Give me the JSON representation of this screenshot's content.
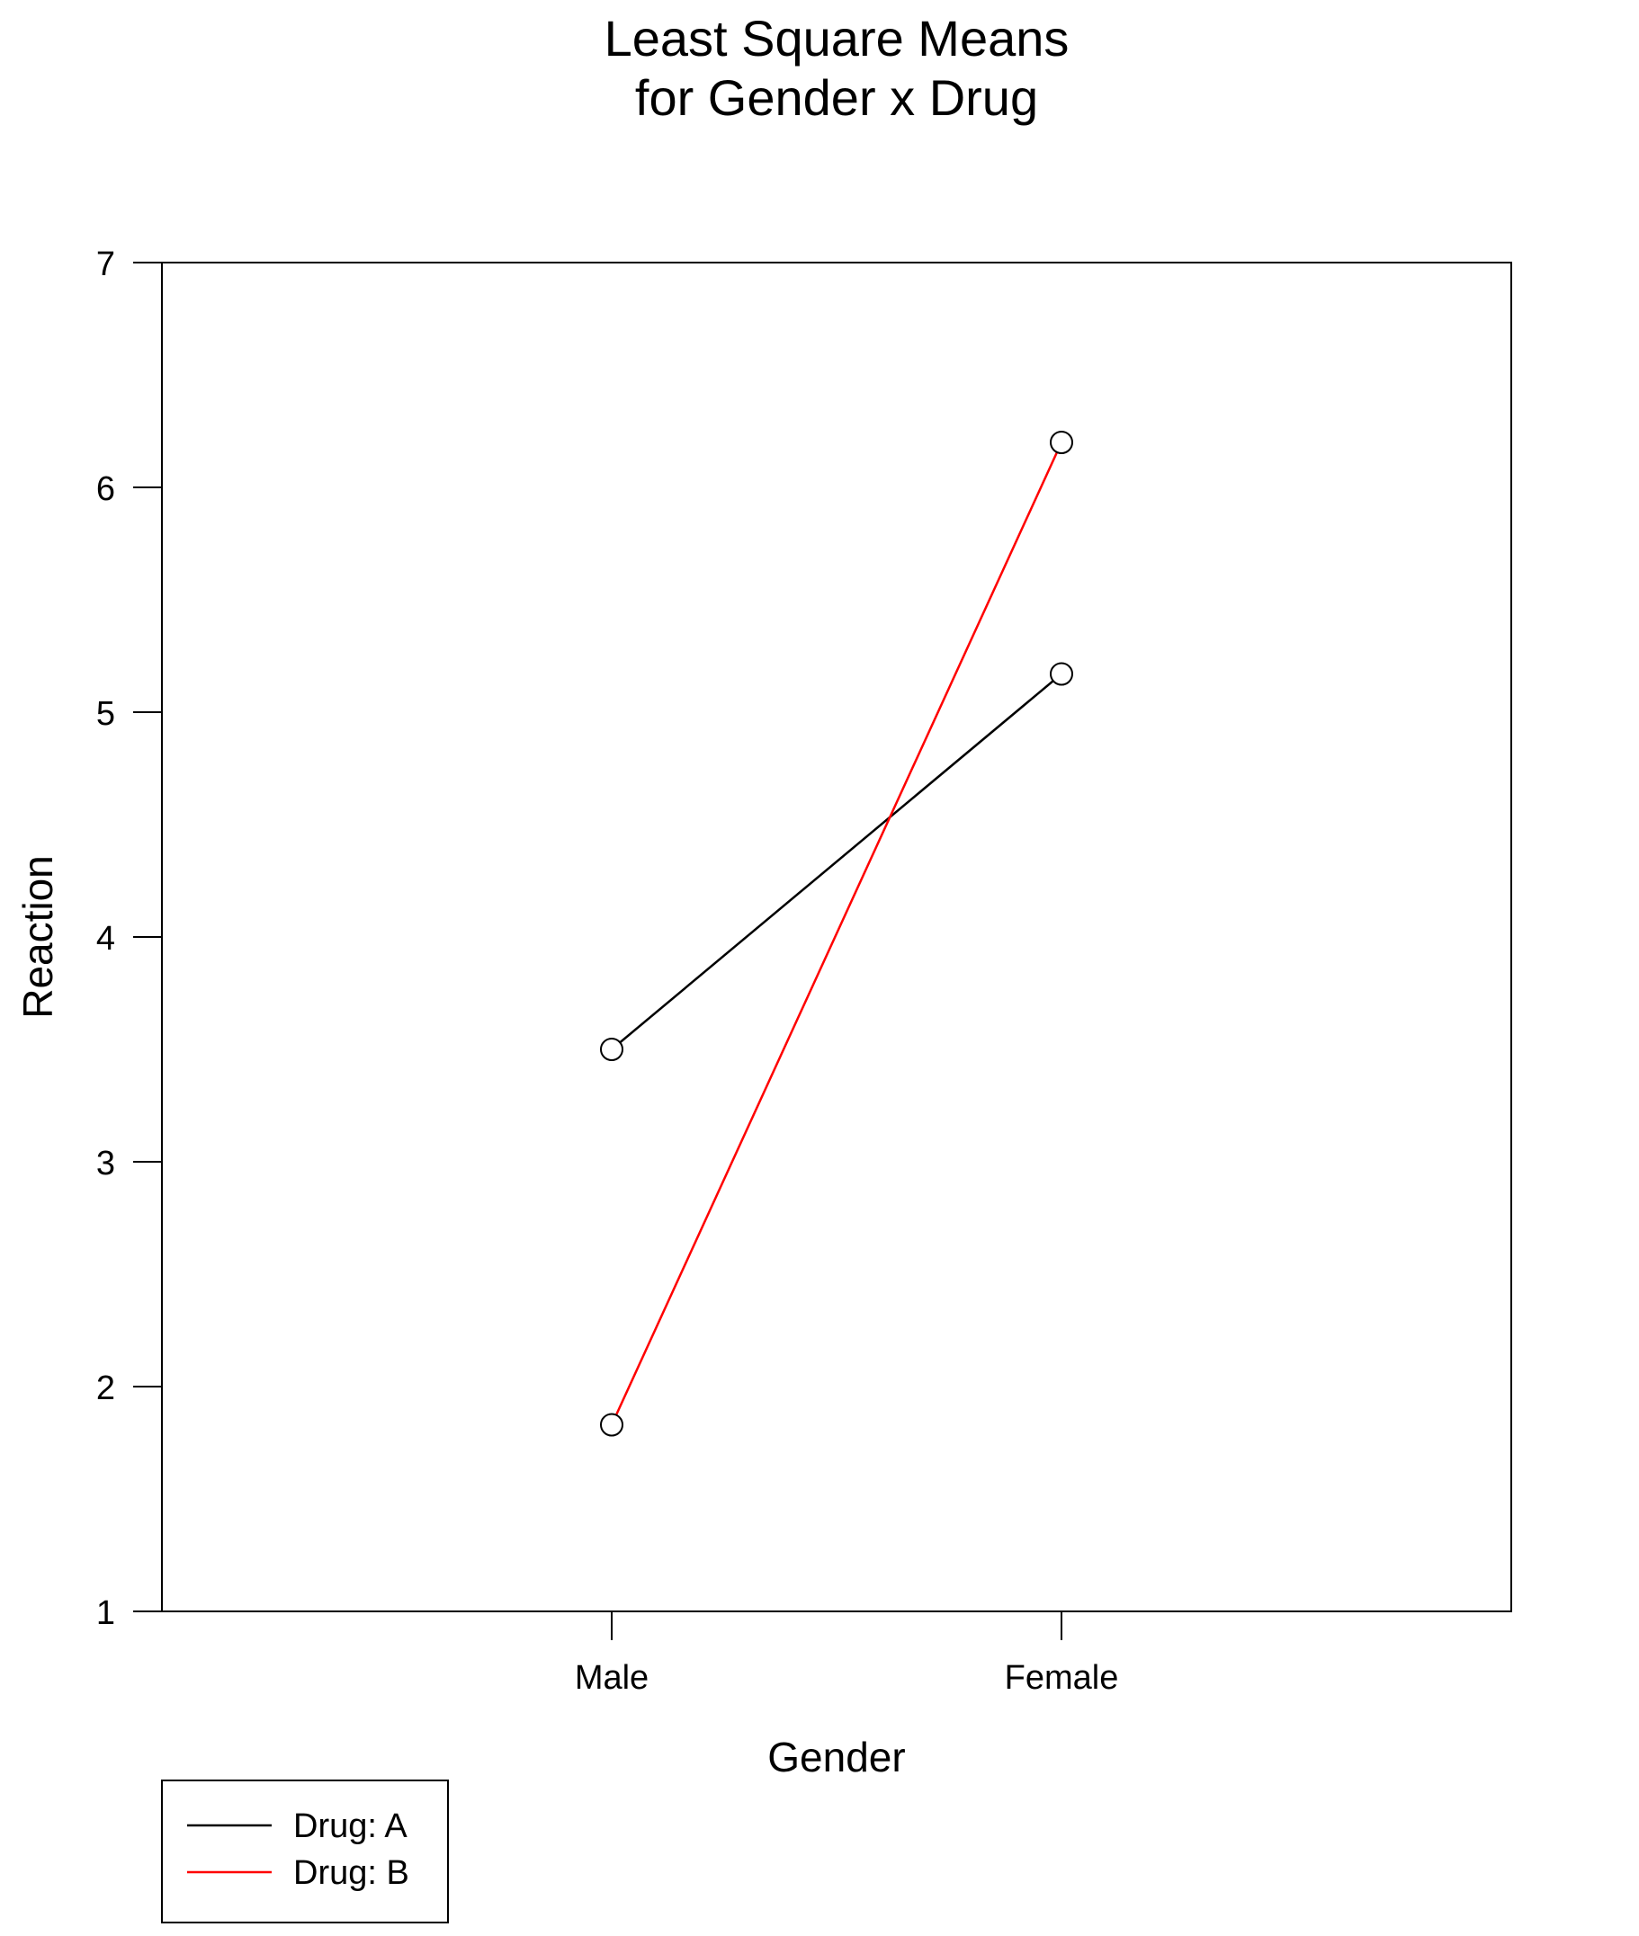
{
  "chart_data": {
    "type": "line",
    "title": [
      "Least Square Means",
      "for Gender x Drug"
    ],
    "xlabel": "Gender",
    "ylabel": "Reaction",
    "categories": [
      "Male",
      "Female"
    ],
    "ylim": [
      1,
      7
    ],
    "yticks": [
      "1",
      "2",
      "3",
      "4",
      "5",
      "6",
      "7"
    ],
    "series": [
      {
        "name": "Drug: A",
        "values": [
          3.5,
          5.17
        ],
        "color": "#000000"
      },
      {
        "name": "Drug: B",
        "values": [
          1.83,
          6.2
        ],
        "color": "#ff0000"
      }
    ],
    "marker": "open-circle",
    "grid": false,
    "legend_position": "bottom-left"
  }
}
